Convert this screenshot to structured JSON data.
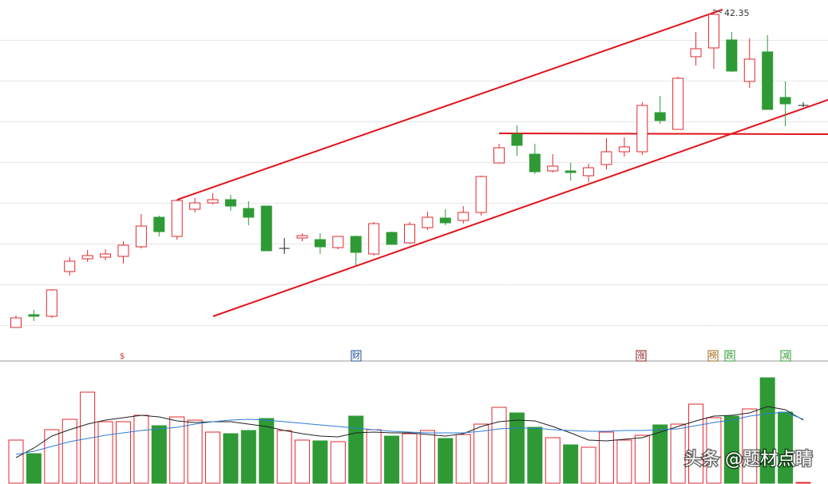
{
  "chart_data": {
    "type": "candlestick",
    "open": [
      22.45,
      23.25,
      23.15,
      25.95,
      26.75,
      26.85,
      26.9,
      27.5,
      29.35,
      28.15,
      29.85,
      30.25,
      30.45,
      29.9,
      30.05,
      27.4,
      28.05,
      27.95,
      27.45,
      28.15,
      27.05,
      28.4,
      27.75,
      28.7,
      29.3,
      29.15,
      29.65,
      32.75,
      34.55,
      33.3,
      32.25,
      32.25,
      31.95,
      32.65,
      33.45,
      33.45,
      35.9,
      34.85,
      39.4,
      39.95,
      40.45,
      37.85,
      39.7,
      36.85,
      36.35
    ],
    "high": [
      23.2,
      23.55,
      24.85,
      26.85,
      27.3,
      27.35,
      27.85,
      29.55,
      29.45,
      30.45,
      30.55,
      30.85,
      30.75,
      30.35,
      30.05,
      28.05,
      28.35,
      28.35,
      28.15,
      28.2,
      29.05,
      28.45,
      29.05,
      29.7,
      29.85,
      30.05,
      31.95,
      33.95,
      35.1,
      33.95,
      33.3,
      32.75,
      32.7,
      34.3,
      34.35,
      36.55,
      36.95,
      38.15,
      40.95,
      42.35,
      40.95,
      40.55,
      40.75,
      37.85,
      36.55
    ],
    "low": [
      22.45,
      22.85,
      23.05,
      25.7,
      26.55,
      26.65,
      26.45,
      27.4,
      28.15,
      27.95,
      29.65,
      30.15,
      29.75,
      28.85,
      27.25,
      27.05,
      27.85,
      27.05,
      27.35,
      26.35,
      26.95,
      27.65,
      27.7,
      28.55,
      28.85,
      28.95,
      29.45,
      32.7,
      33.2,
      32.05,
      32.15,
      31.65,
      31.55,
      32.35,
      33.15,
      33.25,
      35.2,
      34.85,
      38.85,
      38.65,
      38.45,
      37.45,
      36.1,
      35.05,
      36.25
    ],
    "close": [
      23.05,
      23.15,
      24.8,
      26.6,
      26.95,
      27.05,
      27.6,
      28.8,
      28.45,
      30.4,
      30.25,
      30.45,
      30.05,
      29.35,
      27.25,
      27.4,
      28.2,
      27.5,
      28.15,
      27.15,
      28.95,
      27.65,
      28.9,
      29.35,
      29.0,
      29.65,
      31.9,
      33.7,
      33.85,
      32.2,
      32.55,
      32.15,
      32.45,
      33.45,
      33.75,
      36.35,
      35.4,
      38.05,
      39.9,
      42.05,
      38.5,
      39.25,
      36.1,
      36.45,
      36.35
    ],
    "ylim": [
      20.95,
      42.95
    ],
    "high_annotation": 42.35,
    "up_color": "#e2282f",
    "down_color": "#2f9a35",
    "flat_color": "#222222",
    "volume": {
      "values": [
        54,
        37,
        67,
        80,
        114,
        77,
        77,
        85,
        72,
        83,
        79,
        64,
        62,
        66,
        81,
        66,
        54,
        53,
        52,
        84,
        67,
        59,
        62,
        66,
        56,
        61,
        74,
        95,
        88,
        70,
        57,
        48,
        45,
        64,
        54,
        60,
        73,
        74,
        99,
        82,
        84,
        93,
        132,
        89,
        1
      ],
      "ylim": [
        0,
        150
      ],
      "ma": [
        {
          "color": "#222222",
          "values": [
            32,
            44,
            59,
            67,
            74,
            79,
            82,
            85,
            83,
            78,
            76,
            77,
            77,
            74,
            71,
            66,
            62,
            59,
            58,
            63,
            64,
            63,
            63,
            61,
            59,
            62,
            71,
            77,
            79,
            78,
            71,
            63,
            54,
            53,
            55,
            57,
            64,
            71,
            78,
            84,
            85,
            88,
            96,
            92,
            79
          ]
        },
        {
          "color": "#2a7fd4",
          "values": [
            36,
            40,
            46,
            52,
            56,
            60,
            63,
            66,
            68,
            70,
            74,
            77,
            79,
            80,
            79,
            77,
            75,
            73,
            71,
            69,
            67,
            65,
            64,
            63,
            63,
            63,
            65,
            68,
            69,
            69,
            67,
            66,
            65,
            65,
            66,
            66,
            67,
            68,
            72,
            76,
            79,
            84,
            87,
            89,
            80
          ]
        }
      ]
    },
    "markers": [
      {
        "label": "$",
        "color": "#d42a2a"
      },
      {
        "label": "财",
        "color": "#1b4f9a"
      },
      {
        "label": "涨",
        "color": "#8b1a1a"
      },
      {
        "label": "榜",
        "color": "#9a6a1a"
      },
      {
        "label": "跌",
        "color": "#2f9a35"
      },
      {
        "label": "减",
        "color": "#2f9a35"
      }
    ],
    "watermark": "头条 @题材点睛"
  }
}
